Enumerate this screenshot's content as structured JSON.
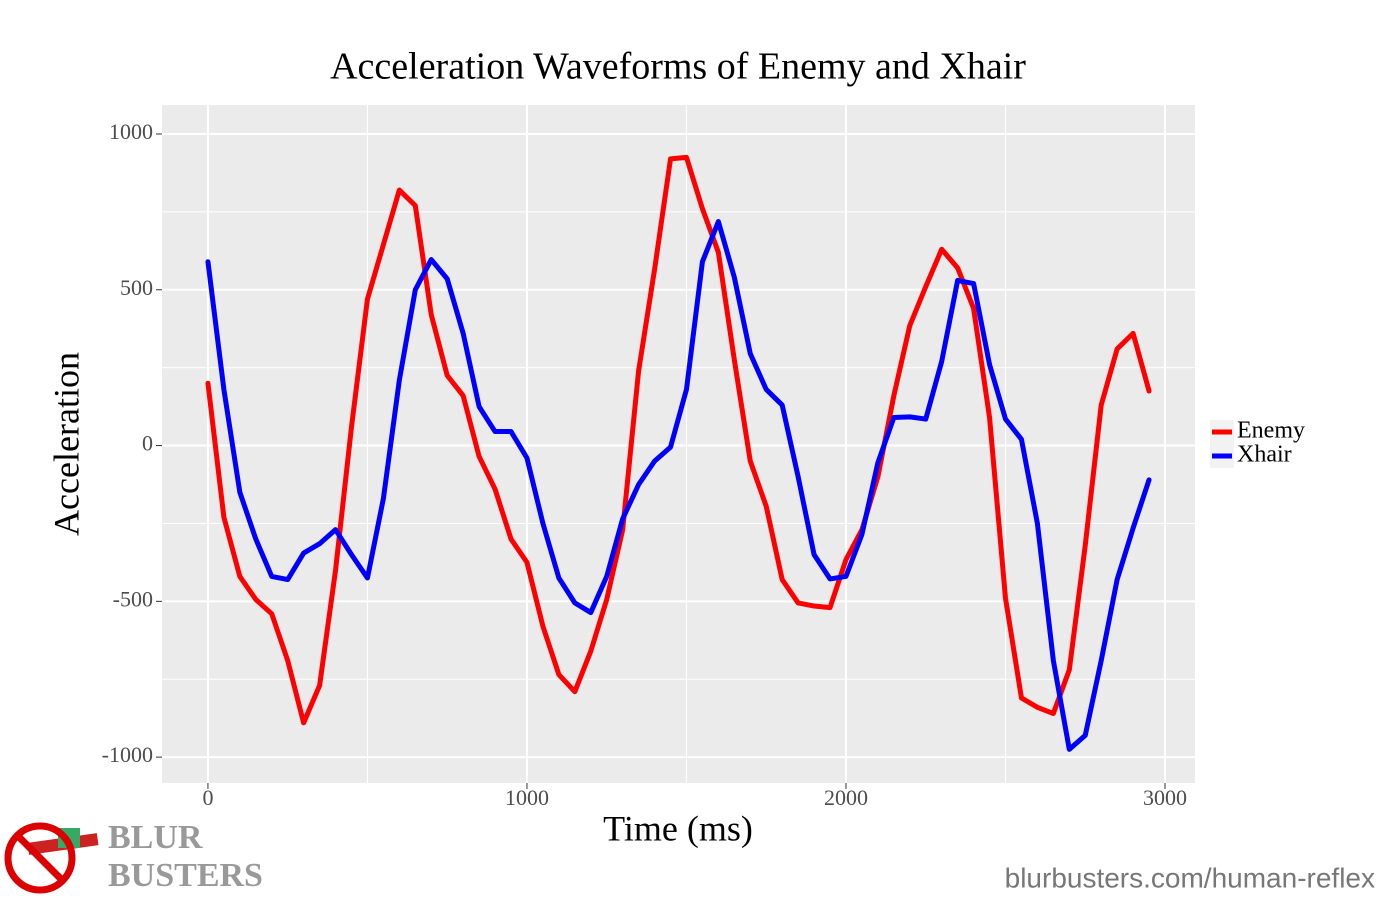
{
  "chart_data": {
    "type": "line",
    "title": "Acceleration Waveforms of Enemy and Xhair",
    "x_label": "Time (ms)",
    "y_label": "Acceleration",
    "x": [
      0,
      50,
      100,
      150,
      200,
      250,
      300,
      350,
      400,
      450,
      500,
      550,
      600,
      650,
      700,
      750,
      800,
      850,
      900,
      950,
      1000,
      1050,
      1100,
      1150,
      1200,
      1250,
      1300,
      1350,
      1400,
      1450,
      1500,
      1550,
      1600,
      1650,
      1700,
      1750,
      1800,
      1850,
      1900,
      1950,
      2000,
      2050,
      2100,
      2150,
      2200,
      2250,
      2300,
      2350,
      2400,
      2450,
      2500,
      2550,
      2600,
      2650,
      2700,
      2750,
      2800,
      2850,
      2900,
      2950
    ],
    "series": [
      {
        "name": "Enemy",
        "color": "#ff0000",
        "values": [
          200,
          -230,
          -420,
          -494,
          -540,
          -690,
          -890,
          -770,
          -400,
          60,
          470,
          645,
          820,
          770,
          420,
          225,
          160,
          -35,
          -140,
          -300,
          -375,
          -580,
          -735,
          -790,
          -660,
          -494,
          -270,
          240,
          565,
          920,
          925,
          760,
          620,
          275,
          -50,
          -195,
          -430,
          -505,
          -515,
          -520,
          -366,
          -270,
          -100,
          160,
          385,
          510,
          630,
          570,
          440,
          90,
          -490,
          -810,
          -840,
          -860,
          -720,
          -320,
          130,
          310,
          360,
          175
        ]
      },
      {
        "name": "Xhair",
        "color": "#0000ff",
        "values": [
          590,
          180,
          -150,
          -300,
          -420,
          -430,
          -345,
          -315,
          -270,
          -350,
          -425,
          -170,
          210,
          500,
          597,
          535,
          360,
          125,
          45,
          45,
          -40,
          -250,
          -425,
          -505,
          -536,
          -420,
          -235,
          -125,
          -50,
          -5,
          180,
          590,
          719,
          540,
          295,
          180,
          130,
          -100,
          -350,
          -428,
          -420,
          -285,
          -55,
          90,
          92,
          85,
          270,
          530,
          520,
          260,
          85,
          20,
          -250,
          -690,
          -975,
          -930,
          -690,
          -430,
          -265,
          -110
        ]
      }
    ],
    "xlim": [
      -144,
      3094
    ],
    "ylim": [
      -1083,
      1093
    ],
    "xticks": [
      0,
      1000,
      2000,
      3000
    ],
    "yticks": [
      -1000,
      -500,
      0,
      500,
      1000
    ],
    "xminorticks": [
      500,
      1500,
      2500
    ],
    "yminorticks": [
      -750,
      -250,
      250,
      750
    ],
    "grid": true,
    "legend": "right",
    "logo_top": "BLUR",
    "logo_bottom": "BUSTERS",
    "url": "blurbusters.com/human-reflex"
  }
}
